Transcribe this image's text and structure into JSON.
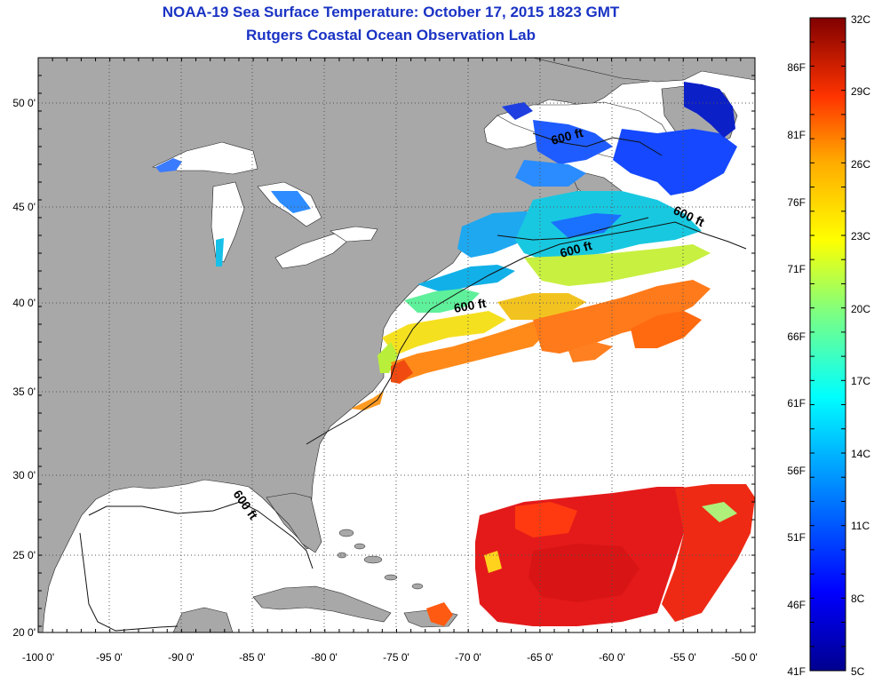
{
  "title": "NOAA-19 Sea Surface Temperature:  October 17, 2015 1823 GMT",
  "subtitle": "Rutgers Coastal Ocean Observation Lab",
  "longitude_ticks": [
    "-100 0'",
    "-95 0'",
    "-90 0'",
    "-85 0'",
    "-80 0'",
    "-75 0'",
    "-70 0'",
    "-65 0'",
    "-60 0'",
    "-55 0'",
    "-50 0'"
  ],
  "latitude_ticks": [
    "50 0'",
    "45 0'",
    "40 0'",
    "35 0'",
    "30 0'",
    "25 0'",
    "20 0'"
  ],
  "contour_labels": [
    "600 ft",
    "600 ft",
    "600 ft",
    "600 ft",
    "600 ft"
  ],
  "colorbar": {
    "celsius_labels": [
      "32C",
      "29C",
      "26C",
      "23C",
      "20C",
      "17C",
      "14C",
      "11C",
      "8C",
      "5C"
    ],
    "fahrenheit_labels": [
      "86F",
      "81F",
      "76F",
      "71F",
      "66F",
      "61F",
      "56F",
      "51F",
      "46F",
      "41F"
    ],
    "colors": [
      "#00008f",
      "#0000ff",
      "#00aaff",
      "#00ffff",
      "#7fff7f",
      "#ffff00",
      "#ffaa00",
      "#ff5500",
      "#ff0000",
      "#800000"
    ]
  },
  "colors": {
    "land": "#a8a8a8",
    "ocean_nodata": "#ffffff",
    "title": "#1a33c4",
    "cold_water": "#1f5cff",
    "cool_water": "#19b8e0",
    "warm_water": "#ff7a1a",
    "hot_water": "#e41a1a"
  }
}
